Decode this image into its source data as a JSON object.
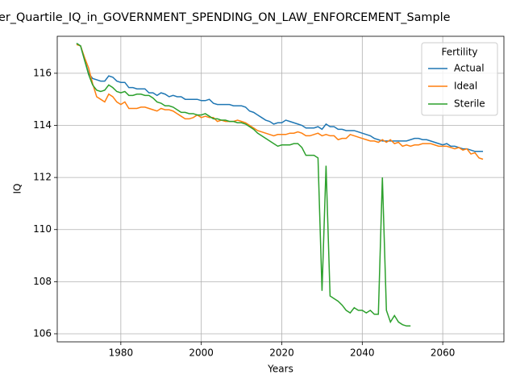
{
  "chart_data": {
    "type": "line",
    "title": "er_Quartile_IQ_in_GOVERNMENT_SPENDING_ON_LAW_ENFORCEMENT_Sample",
    "xlabel": "Years",
    "ylabel": "IQ",
    "legend_title": "Fertility",
    "legend": "upper right",
    "grid": true,
    "xlim": [
      1964.2,
      2075.2
    ],
    "xticks": [
      1980,
      2000,
      2020,
      2040,
      2060
    ],
    "ylim": [
      105.69,
      117.42
    ],
    "yticks": [
      106,
      108,
      110,
      112,
      114,
      116
    ],
    "x": [
      1969,
      1970,
      1971,
      1972,
      1973,
      1974,
      1975,
      1976,
      1977,
      1978,
      1979,
      1980,
      1981,
      1982,
      1983,
      1984,
      1985,
      1986,
      1987,
      1988,
      1989,
      1990,
      1991,
      1992,
      1993,
      1994,
      1995,
      1996,
      1997,
      1998,
      1999,
      2000,
      2001,
      2002,
      2003,
      2004,
      2005,
      2006,
      2007,
      2008,
      2009,
      2010,
      2011,
      2012,
      2013,
      2014,
      2015,
      2016,
      2017,
      2018,
      2019,
      2020,
      2021,
      2022,
      2023,
      2024,
      2025,
      2026,
      2027,
      2028,
      2029,
      2030,
      2031,
      2032,
      2033,
      2034,
      2035,
      2036,
      2037,
      2038,
      2039,
      2040,
      2041,
      2042,
      2043,
      2044,
      2045,
      2046,
      2047,
      2048,
      2049,
      2050,
      2051,
      2052,
      2053,
      2054,
      2055,
      2056,
      2057,
      2058,
      2059,
      2060,
      2061,
      2062,
      2063,
      2064,
      2065,
      2066,
      2067,
      2068,
      2069,
      2070
    ],
    "series": [
      {
        "name": "Actual",
        "color": "#1f77b4",
        "values": [
          117.15,
          117.05,
          116.5,
          116.0,
          115.8,
          115.75,
          115.7,
          115.7,
          115.9,
          115.85,
          115.7,
          115.65,
          115.65,
          115.45,
          115.45,
          115.4,
          115.4,
          115.4,
          115.25,
          115.25,
          115.15,
          115.25,
          115.2,
          115.1,
          115.15,
          115.1,
          115.1,
          115.0,
          115.0,
          115.0,
          115.0,
          114.95,
          114.95,
          115.0,
          114.85,
          114.8,
          114.8,
          114.8,
          114.8,
          114.75,
          114.75,
          114.75,
          114.7,
          114.55,
          114.5,
          114.4,
          114.3,
          114.2,
          114.15,
          114.05,
          114.1,
          114.1,
          114.2,
          114.15,
          114.1,
          114.05,
          114.0,
          113.9,
          113.9,
          113.9,
          113.95,
          113.85,
          114.05,
          113.95,
          113.95,
          113.85,
          113.85,
          113.8,
          113.8,
          113.8,
          113.75,
          113.7,
          113.65,
          113.6,
          113.5,
          113.45,
          113.4,
          113.4,
          113.4,
          113.4,
          113.4,
          113.4,
          113.4,
          113.45,
          113.5,
          113.5,
          113.45,
          113.45,
          113.4,
          113.35,
          113.3,
          113.25,
          113.3,
          113.2,
          113.2,
          113.15,
          113.1,
          113.1,
          113.05,
          113.0,
          113.0,
          113.0
        ]
      },
      {
        "name": "Ideal",
        "color": "#ff7f0e",
        "values": [
          117.1,
          117.05,
          116.6,
          116.2,
          115.6,
          115.1,
          115.0,
          114.9,
          115.2,
          115.1,
          114.9,
          114.8,
          114.9,
          114.65,
          114.65,
          114.65,
          114.7,
          114.7,
          114.65,
          114.6,
          114.55,
          114.65,
          114.6,
          114.6,
          114.55,
          114.45,
          114.35,
          114.25,
          114.25,
          114.3,
          114.4,
          114.3,
          114.35,
          114.3,
          114.3,
          114.15,
          114.2,
          114.15,
          114.15,
          114.15,
          114.2,
          114.15,
          114.1,
          114.0,
          113.9,
          113.8,
          113.75,
          113.7,
          113.65,
          113.6,
          113.65,
          113.65,
          113.65,
          113.7,
          113.7,
          113.75,
          113.7,
          113.6,
          113.6,
          113.65,
          113.7,
          113.6,
          113.65,
          113.6,
          113.6,
          113.45,
          113.5,
          113.5,
          113.65,
          113.6,
          113.55,
          113.5,
          113.45,
          113.4,
          113.4,
          113.35,
          113.45,
          113.35,
          113.45,
          113.3,
          113.35,
          113.2,
          113.25,
          113.2,
          113.25,
          113.25,
          113.3,
          113.3,
          113.3,
          113.25,
          113.2,
          113.2,
          113.2,
          113.15,
          113.1,
          113.15,
          113.05,
          113.1,
          112.9,
          112.95,
          112.75,
          112.7
        ]
      },
      {
        "name": "Sterile",
        "color": "#2ca02c",
        "values": [
          117.15,
          117.05,
          116.5,
          115.95,
          115.55,
          115.35,
          115.3,
          115.35,
          115.55,
          115.45,
          115.3,
          115.25,
          115.3,
          115.15,
          115.15,
          115.2,
          115.2,
          115.15,
          115.15,
          115.05,
          114.9,
          114.85,
          114.75,
          114.75,
          114.7,
          114.6,
          114.5,
          114.5,
          114.45,
          114.45,
          114.4,
          114.4,
          114.45,
          114.35,
          114.25,
          114.25,
          114.2,
          114.2,
          114.15,
          114.15,
          114.1,
          114.1,
          114.05,
          113.95,
          113.85,
          113.7,
          113.6,
          113.5,
          113.4,
          113.3,
          113.2,
          113.25,
          113.25,
          113.25,
          113.3,
          113.3,
          113.15,
          112.85,
          112.85,
          112.85,
          112.75,
          107.65,
          112.45,
          107.45,
          107.35,
          107.25,
          107.1,
          106.9,
          106.8,
          107.0,
          106.9,
          106.9,
          106.8,
          106.9,
          106.75,
          106.75,
          112.0,
          106.9,
          106.45,
          106.7,
          106.45,
          106.35,
          106.3,
          106.3,
          null,
          null,
          null,
          null,
          null,
          null,
          null,
          null,
          null,
          null,
          null,
          null,
          null,
          null,
          null,
          null,
          null,
          null
        ]
      }
    ]
  }
}
